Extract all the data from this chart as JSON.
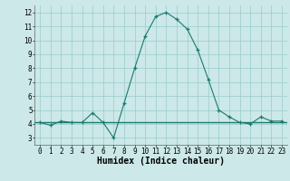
{
  "x": [
    0,
    1,
    2,
    3,
    4,
    5,
    6,
    7,
    8,
    9,
    10,
    11,
    12,
    13,
    14,
    15,
    16,
    17,
    18,
    19,
    20,
    21,
    22,
    23
  ],
  "y_curve": [
    4.1,
    3.9,
    4.2,
    4.1,
    4.1,
    4.8,
    4.1,
    3.0,
    5.5,
    8.0,
    10.3,
    11.7,
    12.0,
    11.5,
    10.8,
    9.3,
    7.2,
    5.0,
    4.5,
    4.1,
    4.0,
    4.5,
    4.2,
    4.2
  ],
  "y_hline": 4.1,
  "xlim": [
    -0.5,
    23.5
  ],
  "ylim": [
    2.5,
    12.5
  ],
  "yticks": [
    3,
    4,
    5,
    6,
    7,
    8,
    9,
    10,
    11,
    12
  ],
  "xticks": [
    0,
    1,
    2,
    3,
    4,
    5,
    6,
    7,
    8,
    9,
    10,
    11,
    12,
    13,
    14,
    15,
    16,
    17,
    18,
    19,
    20,
    21,
    22,
    23
  ],
  "xlabel": "Humidex (Indice chaleur)",
  "line_color": "#1a7a6e",
  "hline_color": "#1a7a6e",
  "bg_color": "#cce8e8",
  "grid_color": "#99cccc",
  "tick_fontsize": 5.5,
  "label_fontsize": 7.0,
  "marker": "+"
}
